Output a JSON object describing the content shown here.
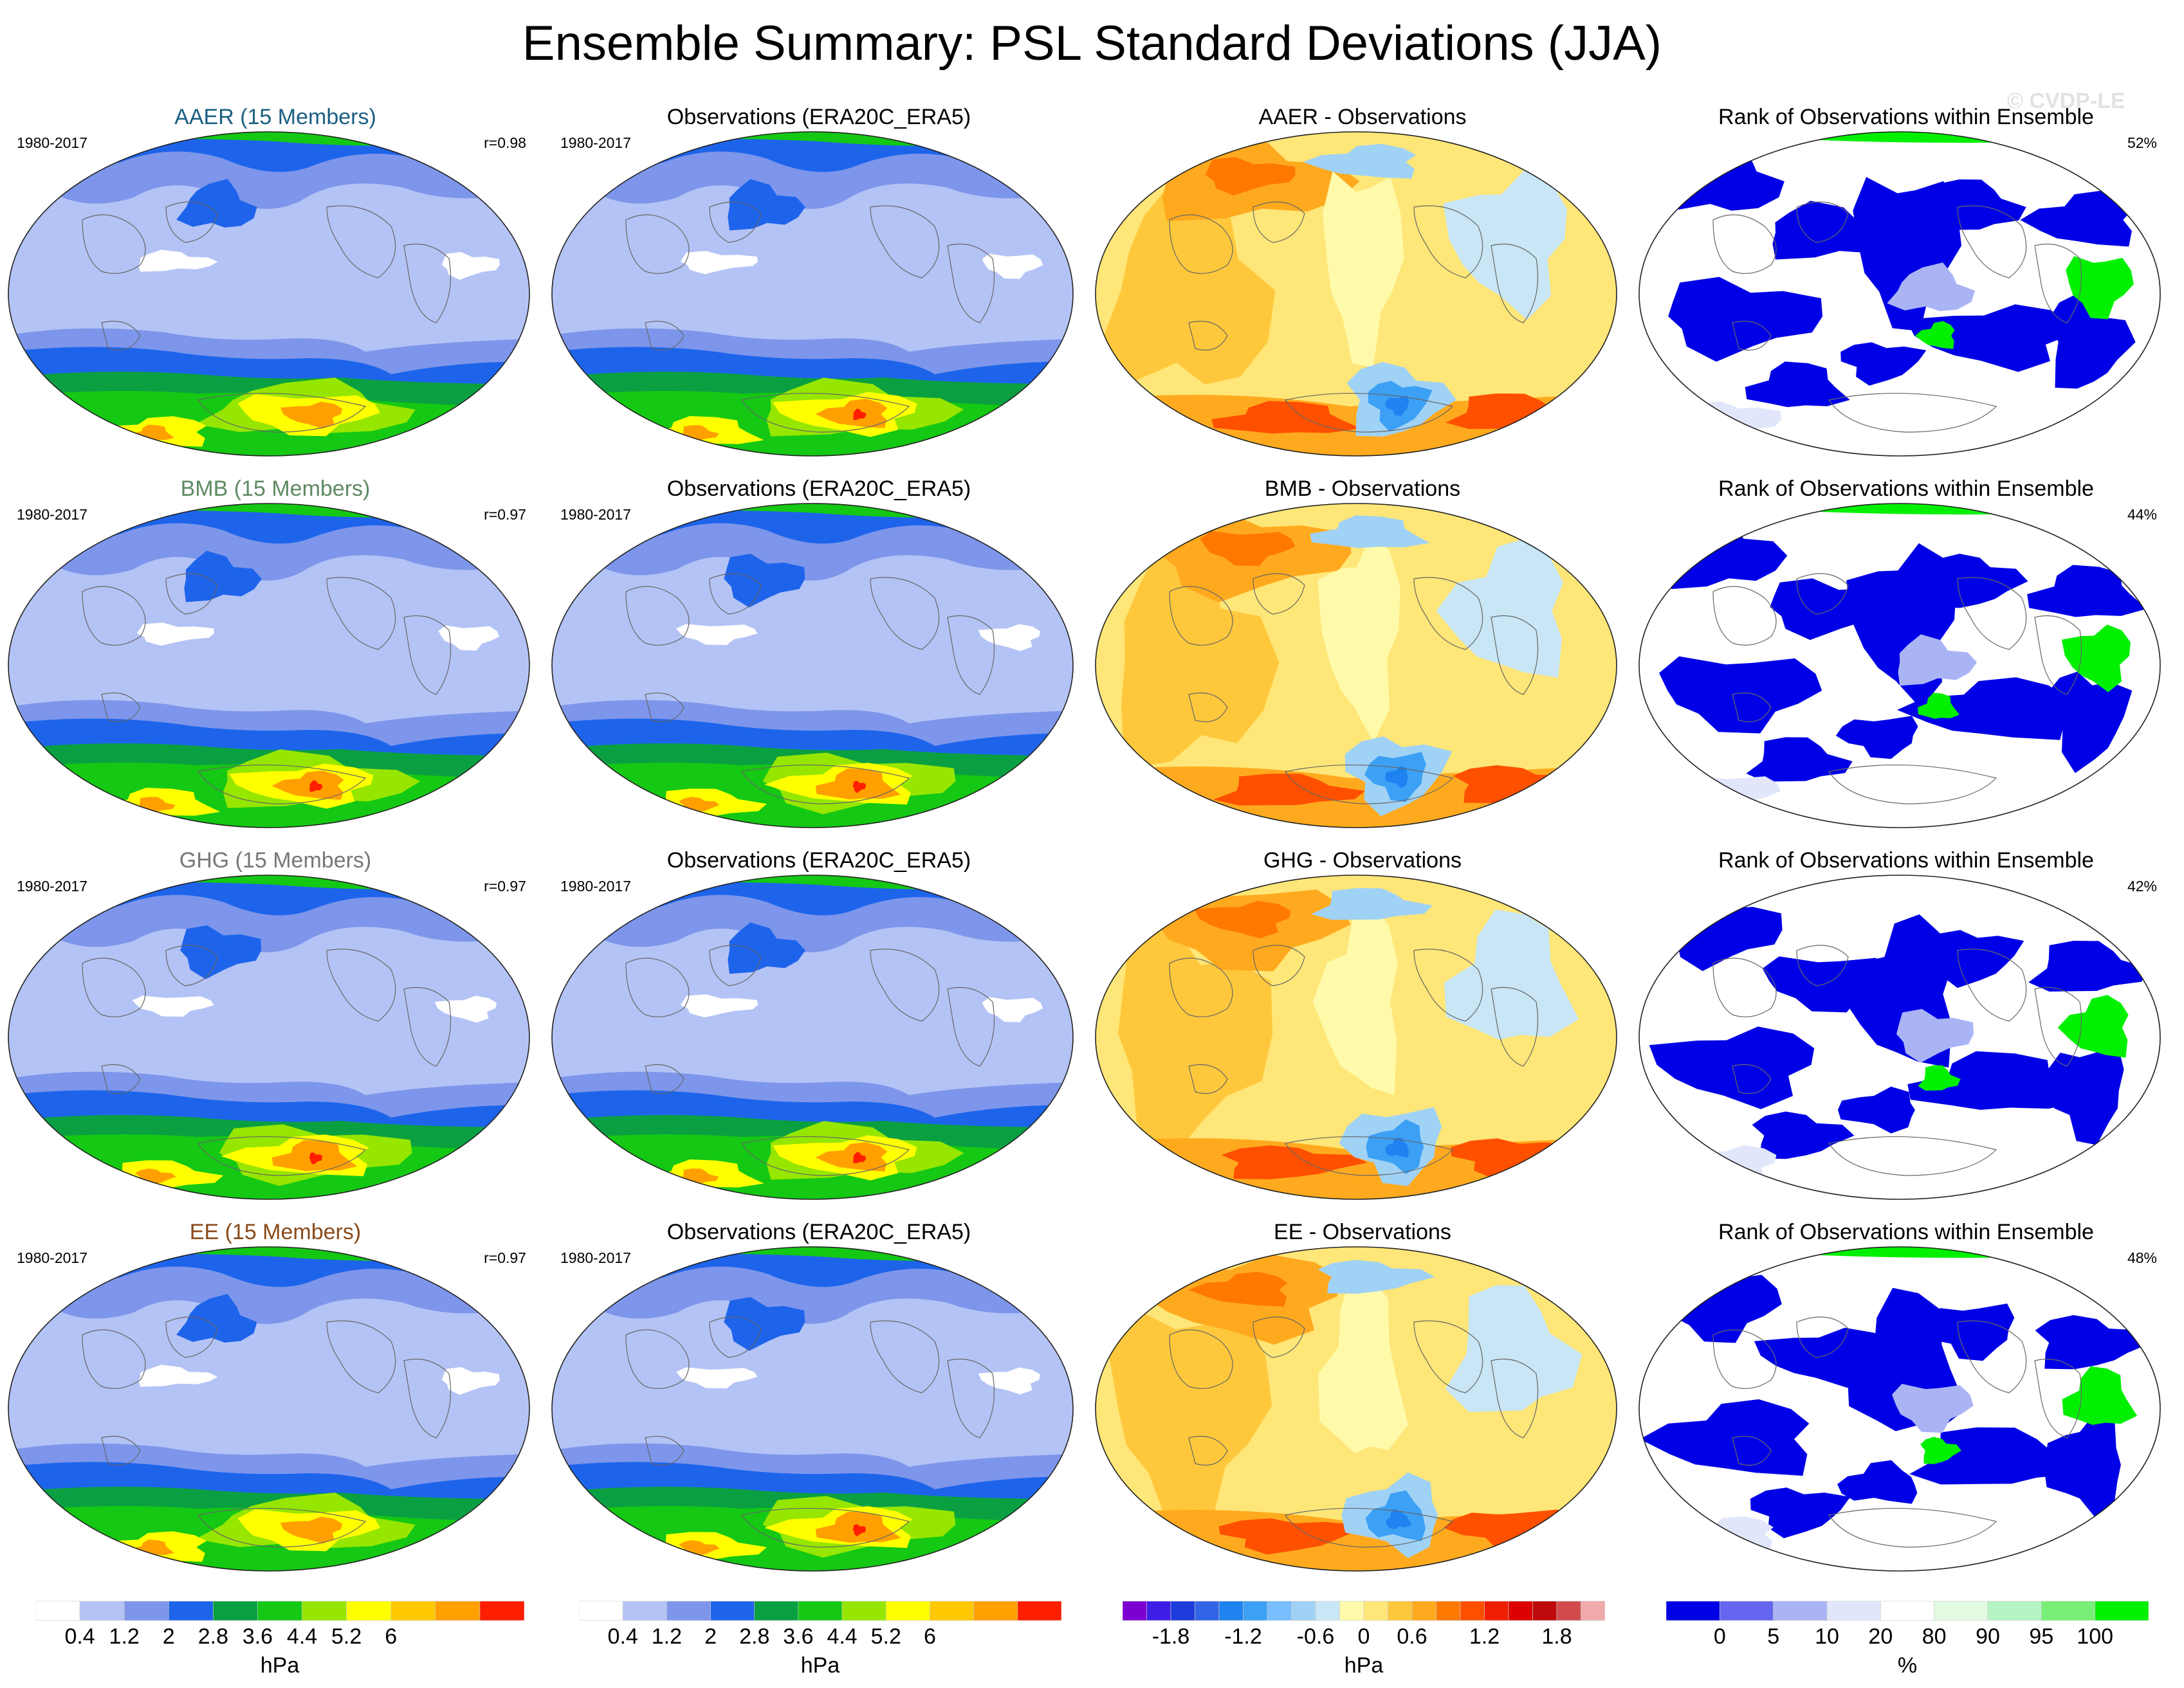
{
  "title": "Ensemble Summary: PSL Standard Deviations (JJA)",
  "watermark": "© CVDP-LE",
  "rows": [
    {
      "ensemble": {
        "title": "AAER (15 Members)",
        "period": "1980-2017",
        "stat": "r=0.98",
        "title_color": "#1a5f82"
      },
      "obs": {
        "title": "Observations (ERA20C_ERA5)",
        "period": "1980-2017"
      },
      "diff": {
        "title": "AAER - Observations"
      },
      "rank": {
        "title": "Rank of Observations within Ensemble",
        "stat": "52%"
      }
    },
    {
      "ensemble": {
        "title": "BMB (15 Members)",
        "period": "1980-2017",
        "stat": "r=0.97",
        "title_color": "#5e8a62"
      },
      "obs": {
        "title": "Observations (ERA20C_ERA5)",
        "period": "1980-2017"
      },
      "diff": {
        "title": "BMB - Observations"
      },
      "rank": {
        "title": "Rank of Observations within Ensemble",
        "stat": "44%"
      }
    },
    {
      "ensemble": {
        "title": "GHG (15 Members)",
        "period": "1980-2017",
        "stat": "r=0.97",
        "title_color": "#777777"
      },
      "obs": {
        "title": "Observations (ERA20C_ERA5)",
        "period": "1980-2017"
      },
      "diff": {
        "title": "GHG - Observations"
      },
      "rank": {
        "title": "Rank of Observations within Ensemble",
        "stat": "42%"
      }
    },
    {
      "ensemble": {
        "title": "EE (15 Members)",
        "period": "1980-2017",
        "stat": "r=0.97",
        "title_color": "#8a4a18"
      },
      "obs": {
        "title": "Observations (ERA20C_ERA5)",
        "period": "1980-2017"
      },
      "diff": {
        "title": "EE - Observations"
      },
      "rank": {
        "title": "Rank of Observations within Ensemble",
        "stat": "48%"
      }
    }
  ],
  "colorbars": {
    "stddev": {
      "unit": "hPa",
      "colors": [
        "#ffffff",
        "#b4c3f5",
        "#7d96eb",
        "#1e64eb",
        "#0aa041",
        "#14c814",
        "#96e600",
        "#ffff00",
        "#ffc800",
        "#ffa000",
        "#ff1e00"
      ],
      "labels": [
        "0.4",
        "1.2",
        "2",
        "2.8",
        "3.6",
        "4.4",
        "5.2",
        "6"
      ],
      "label_boundaries": [
        1,
        2,
        3,
        4,
        5,
        6,
        7,
        8
      ]
    },
    "difference": {
      "unit": "hPa",
      "colors": [
        "#7d00d2",
        "#3c1ee6",
        "#1e3cdc",
        "#3264e6",
        "#1e82f0",
        "#3ca0f5",
        "#78beff",
        "#a0d2f5",
        "#c8e6f5",
        "#fffaaa",
        "#ffe678",
        "#ffc83c",
        "#ffaa1e",
        "#ff7800",
        "#ff5000",
        "#f01e00",
        "#dc0000",
        "#be0a0a",
        "#d24b4b",
        "#f0aaaa"
      ],
      "labels": [
        "-1.8",
        "-1.2",
        "-0.6",
        "0",
        "0.6",
        "1.2",
        "1.8"
      ],
      "label_boundaries": [
        2,
        5,
        8,
        10,
        12,
        15,
        18
      ]
    },
    "rank": {
      "unit": "%",
      "colors": [
        "#0000e6",
        "#6466f0",
        "#aab4f5",
        "#e1e6fa",
        "#ffffff",
        "#e1fae1",
        "#b4f5c3",
        "#78f078",
        "#00f000"
      ],
      "labels": [
        "0",
        "5",
        "10",
        "20",
        "80",
        "90",
        "95",
        "100"
      ],
      "label_boundaries": [
        1,
        2,
        3,
        4,
        5,
        6,
        7,
        8
      ]
    }
  },
  "chart_data": [
    {
      "type": "heatmap",
      "title": "AAER (15 Members)",
      "subtitle": "1980-2017",
      "stat": "r=0.98",
      "variable": "PSL standard deviation",
      "units": "hPa",
      "season": "JJA",
      "levels": [
        0.4,
        1.2,
        2,
        2.8,
        3.6,
        4.4,
        5.2,
        6
      ]
    },
    {
      "type": "heatmap",
      "title": "Observations (ERA20C_ERA5)",
      "subtitle": "1980-2017",
      "variable": "PSL standard deviation",
      "units": "hPa",
      "season": "JJA",
      "levels": [
        0.4,
        1.2,
        2,
        2.8,
        3.6,
        4.4,
        5.2,
        6
      ]
    },
    {
      "type": "heatmap",
      "title": "AAER - Observations",
      "variable": "PSL standard deviation difference",
      "units": "hPa",
      "levels": [
        -1.8,
        -1.2,
        -0.6,
        0,
        0.6,
        1.2,
        1.8
      ]
    },
    {
      "type": "heatmap",
      "title": "Rank of Observations within Ensemble",
      "stat": "52%",
      "units": "%",
      "levels": [
        0,
        5,
        10,
        20,
        80,
        90,
        95,
        100
      ]
    },
    {
      "type": "heatmap",
      "title": "BMB (15 Members)",
      "subtitle": "1980-2017",
      "stat": "r=0.97",
      "units": "hPa"
    },
    {
      "type": "heatmap",
      "title": "Observations (ERA20C_ERA5)",
      "subtitle": "1980-2017",
      "units": "hPa"
    },
    {
      "type": "heatmap",
      "title": "BMB - Observations",
      "units": "hPa"
    },
    {
      "type": "heatmap",
      "title": "Rank of Observations within Ensemble",
      "stat": "44%",
      "units": "%"
    },
    {
      "type": "heatmap",
      "title": "GHG (15 Members)",
      "subtitle": "1980-2017",
      "stat": "r=0.97",
      "units": "hPa"
    },
    {
      "type": "heatmap",
      "title": "Observations (ERA20C_ERA5)",
      "subtitle": "1980-2017",
      "units": "hPa"
    },
    {
      "type": "heatmap",
      "title": "GHG - Observations",
      "units": "hPa"
    },
    {
      "type": "heatmap",
      "title": "Rank of Observations within Ensemble",
      "stat": "42%",
      "units": "%"
    },
    {
      "type": "heatmap",
      "title": "EE (15 Members)",
      "subtitle": "1980-2017",
      "stat": "r=0.97",
      "units": "hPa"
    },
    {
      "type": "heatmap",
      "title": "Observations (ERA20C_ERA5)",
      "subtitle": "1980-2017",
      "units": "hPa"
    },
    {
      "type": "heatmap",
      "title": "EE - Observations",
      "units": "hPa"
    },
    {
      "type": "heatmap",
      "title": "Rank of Observations within Ensemble",
      "stat": "48%",
      "units": "%"
    }
  ]
}
